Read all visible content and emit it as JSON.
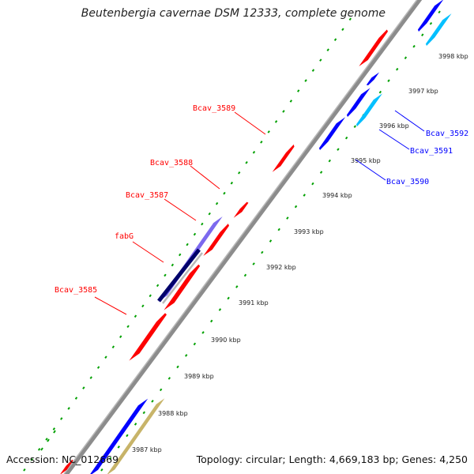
{
  "title": "Beutenbergia cavernae DSM 12333, complete genome",
  "footer": {
    "accession": "Accession: NC_012669",
    "topology": "Topology: circular; Length: 4,669,183 bp; Genes: 4,250"
  },
  "kbp_labels": [
    "3987 kbp",
    "3988 kbp",
    "3989 kbp",
    "3990 kbp",
    "3991 kbp",
    "3992 kbp",
    "3993 kbp",
    "3994 kbp",
    "3995 kbp",
    "3996 kbp",
    "3997 kbp",
    "3998 kbp"
  ],
  "gene_labels_left": [
    "Bcav_3585",
    "fabG",
    "Bcav_3587",
    "Bcav_3588",
    "Bcav_3589"
  ],
  "gene_labels_right": [
    "Bcav_3590",
    "Bcav_3591",
    "Bcav_3592"
  ],
  "colors": {
    "forward_gene": "#ff0000",
    "reverse_gene": "#0000ff",
    "reverse_gene_light": "#00bfff",
    "feature_olive": "#c8b469",
    "feature_purple": "#7b68ee",
    "feature_navy": "#00006b",
    "backbone": "#8c8c8c",
    "tick_green": "#00a000",
    "label_left": "#ff0000",
    "label_right": "#0000ff"
  }
}
